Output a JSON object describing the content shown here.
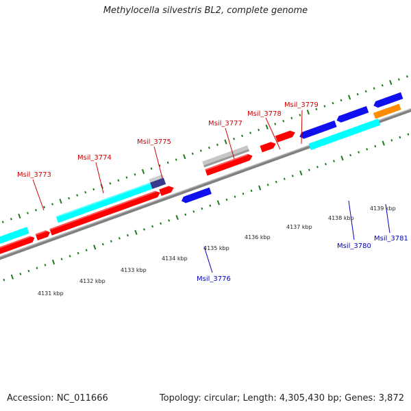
{
  "title": "Methylocella silvestris BL2, complete genome",
  "footer": {
    "accession": "Accession: NC_011666",
    "summary": "Topology: circular; Length: 4,305,430 bp; Genes: 3,872"
  },
  "colors": {
    "forward_label": "#cc0000",
    "reverse_label": "#0000bb",
    "tick": "#1a7a1a",
    "backbone": "#808080",
    "cds": "#ff0000",
    "gene_cyan": "#00ffff",
    "gene_gray": "#bfbfbf",
    "reverse_cds": "#1010ee",
    "other": "#ff8c00"
  },
  "axis": {
    "unit": "kbp",
    "ticks": [
      "4131 kbp",
      "4132 kbp",
      "4133 kbp",
      "4134 kbp",
      "4135 kbp",
      "4136 kbp",
      "4137 kbp",
      "4138 kbp",
      "4139 kbp"
    ]
  },
  "genes": {
    "forward": [
      "Msil_3773",
      "Msil_3774",
      "Msil_3775",
      "Msil_3777",
      "Msil_3778",
      "Msil_3779"
    ],
    "reverse": [
      "Msil_3776",
      "Msil_3780",
      "Msil_3781"
    ]
  }
}
